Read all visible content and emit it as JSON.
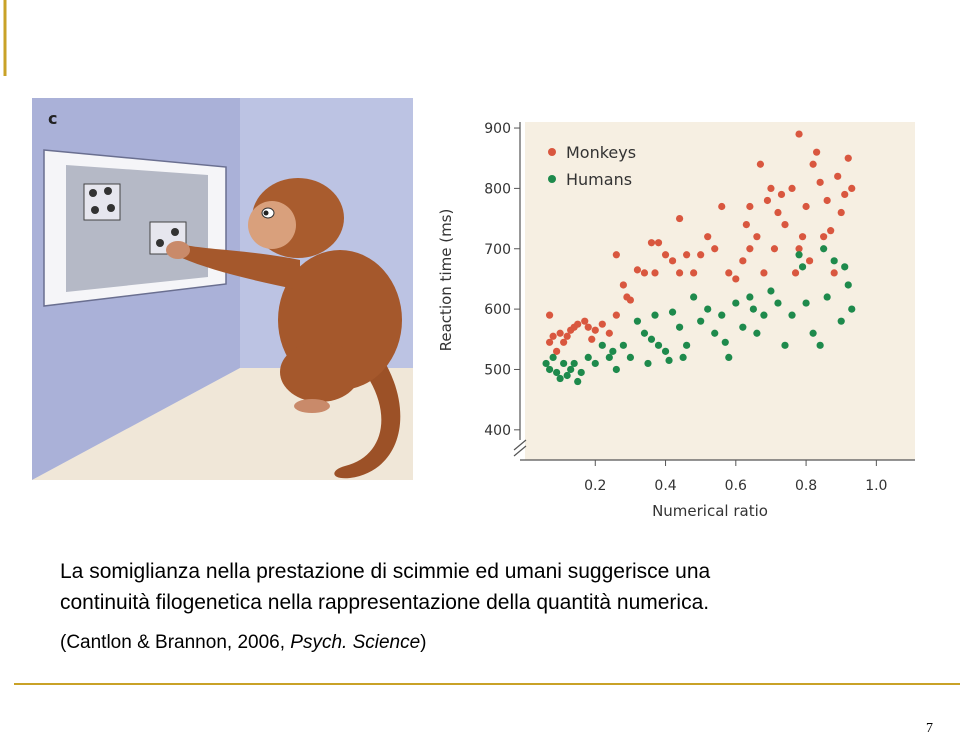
{
  "panel_label": "c",
  "chart_data": {
    "type": "scatter",
    "xlabel": "Numerical ratio",
    "ylabel": "Reaction time (ms)",
    "xlim": [
      0,
      1.11
    ],
    "ylim": [
      350,
      910
    ],
    "xticks": [
      0.2,
      0.4,
      0.6,
      0.8,
      {
        "value": 1,
        "label": "1.0"
      }
    ],
    "yticks": [
      400,
      500,
      600,
      700,
      800,
      900
    ],
    "legend": "upper left",
    "series": [
      {
        "name": "Monkeys",
        "color": "#d9573f",
        "x": [
          0.07,
          0.07,
          0.08,
          0.09,
          0.1,
          0.11,
          0.12,
          0.13,
          0.14,
          0.15,
          0.17,
          0.18,
          0.19,
          0.2,
          0.22,
          0.24,
          0.26,
          0.28,
          0.29,
          0.3,
          0.32,
          0.34,
          0.36,
          0.38,
          0.4,
          0.42,
          0.44,
          0.46,
          0.48,
          0.5,
          0.52,
          0.54,
          0.56,
          0.58,
          0.6,
          0.62,
          0.63,
          0.64,
          0.66,
          0.67,
          0.69,
          0.7,
          0.71,
          0.72,
          0.73,
          0.74,
          0.76,
          0.77,
          0.78,
          0.79,
          0.8,
          0.81,
          0.82,
          0.83,
          0.84,
          0.85,
          0.86,
          0.87,
          0.88,
          0.89,
          0.9,
          0.91,
          0.92,
          0.93,
          0.26,
          0.44,
          0.37,
          0.68,
          0.78,
          0.64
        ],
        "values": [
          590,
          545,
          555,
          530,
          560,
          545,
          555,
          565,
          570,
          575,
          580,
          570,
          550,
          565,
          575,
          560,
          590,
          640,
          620,
          615,
          665,
          660,
          710,
          710,
          690,
          680,
          660,
          690,
          660,
          690,
          720,
          700,
          770,
          660,
          650,
          680,
          740,
          700,
          720,
          840,
          780,
          800,
          700,
          760,
          790,
          740,
          800,
          660,
          700,
          720,
          770,
          680,
          840,
          860,
          810,
          720,
          780,
          730,
          660,
          820,
          760,
          790,
          850,
          800,
          690,
          750,
          660,
          660,
          890,
          770
        ]
      },
      {
        "name": "Humans",
        "color": "#1e8a4c",
        "x": [
          0.06,
          0.07,
          0.08,
          0.09,
          0.1,
          0.11,
          0.12,
          0.13,
          0.14,
          0.15,
          0.16,
          0.18,
          0.2,
          0.22,
          0.24,
          0.25,
          0.26,
          0.28,
          0.3,
          0.32,
          0.34,
          0.36,
          0.37,
          0.38,
          0.4,
          0.41,
          0.42,
          0.44,
          0.46,
          0.48,
          0.5,
          0.52,
          0.54,
          0.56,
          0.57,
          0.58,
          0.6,
          0.62,
          0.64,
          0.66,
          0.68,
          0.7,
          0.72,
          0.74,
          0.76,
          0.78,
          0.79,
          0.8,
          0.82,
          0.84,
          0.86,
          0.88,
          0.9,
          0.91,
          0.92,
          0.93,
          0.45,
          0.35,
          0.65,
          0.85
        ],
        "values": [
          510,
          500,
          520,
          495,
          485,
          510,
          490,
          500,
          510,
          480,
          495,
          520,
          510,
          540,
          520,
          530,
          500,
          540,
          520,
          580,
          560,
          550,
          590,
          540,
          530,
          515,
          595,
          570,
          540,
          620,
          580,
          600,
          560,
          590,
          545,
          520,
          610,
          570,
          620,
          560,
          590,
          630,
          610,
          540,
          590,
          690,
          670,
          610,
          560,
          540,
          620,
          680,
          580,
          670,
          640,
          600,
          520,
          510,
          600,
          700
        ]
      }
    ]
  },
  "caption": {
    "lines": [
      "La somiglianza nella prestazione di scimmie ed umani suggerisce una",
      "continuità filogenetica nella rappresentazione della quantità numerica."
    ]
  },
  "citation": {
    "before": "(Cantlon & Brannon, 2006, ",
    "journal": "Psych. Science",
    "after": ")"
  },
  "page_number": "7"
}
